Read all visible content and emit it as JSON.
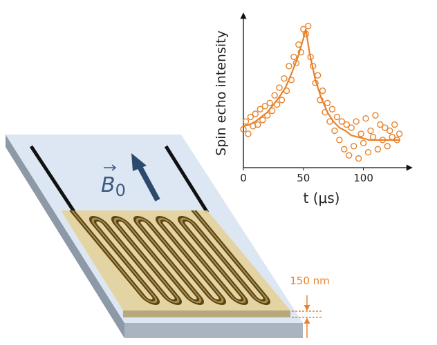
{
  "chart_data": {
    "type": "scatter",
    "xlabel": "t (μs)",
    "ylabel": "Spin echo intensity",
    "xlim": [
      0,
      140
    ],
    "ylim": [
      0,
      1
    ],
    "xticks": [
      0,
      50,
      100
    ],
    "color": "#e8822a",
    "x": [
      0,
      2,
      4,
      6,
      8,
      10,
      12,
      14,
      16,
      18,
      20,
      22,
      24,
      26,
      28,
      30,
      32,
      34,
      36,
      38,
      40,
      42,
      44,
      46,
      48,
      50,
      52,
      54,
      56,
      58,
      60,
      62,
      64,
      66,
      68,
      70,
      72,
      74,
      76,
      78,
      80,
      82,
      84,
      86,
      88,
      90,
      92,
      94,
      96,
      98,
      100,
      102,
      104,
      106,
      108,
      110,
      112,
      114,
      116,
      118,
      120,
      122,
      124,
      126,
      128,
      130
    ],
    "values": [
      0.25,
      0.3,
      0.22,
      0.33,
      0.27,
      0.35,
      0.28,
      0.38,
      0.31,
      0.4,
      0.34,
      0.42,
      0.37,
      0.47,
      0.41,
      0.52,
      0.44,
      0.58,
      0.5,
      0.66,
      0.57,
      0.72,
      0.68,
      0.8,
      0.75,
      0.9,
      0.87,
      0.92,
      0.72,
      0.66,
      0.55,
      0.6,
      0.44,
      0.5,
      0.36,
      0.42,
      0.3,
      0.38,
      0.24,
      0.33,
      0.18,
      0.3,
      0.12,
      0.28,
      0.08,
      0.26,
      0.14,
      0.3,
      0.06,
      0.22,
      0.16,
      0.32,
      0.1,
      0.24,
      0.2,
      0.34,
      0.12,
      0.28,
      0.18,
      0.26,
      0.14,
      0.24,
      0.2,
      0.28,
      0.18,
      0.22
    ],
    "fit": {
      "x": [
        0,
        5,
        10,
        15,
        20,
        25,
        30,
        35,
        40,
        45,
        50,
        52,
        55,
        60,
        65,
        70,
        75,
        80,
        85,
        90,
        95,
        100,
        105,
        110,
        115,
        120,
        125,
        130
      ],
      "values": [
        0.27,
        0.28,
        0.3,
        0.33,
        0.36,
        0.41,
        0.46,
        0.52,
        0.61,
        0.71,
        0.84,
        0.9,
        0.75,
        0.57,
        0.45,
        0.36,
        0.3,
        0.26,
        0.24,
        0.21,
        0.2,
        0.19,
        0.18,
        0.18,
        0.18,
        0.18,
        0.18,
        0.18
      ]
    }
  },
  "diagram": {
    "field_label": {
      "symbol": "B",
      "subscript": "0"
    },
    "thickness_label": "150 nm"
  }
}
